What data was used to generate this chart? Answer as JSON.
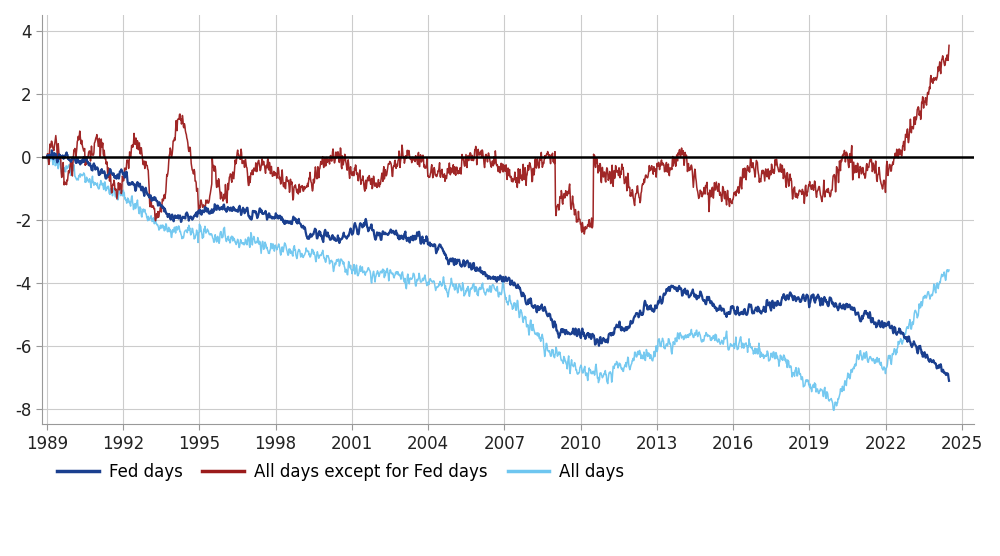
{
  "title": "",
  "ylim": [
    -8.5,
    4.5
  ],
  "yticks": [
    -8,
    -6,
    -4,
    -2,
    0,
    2,
    4
  ],
  "xlim": [
    1988.8,
    2025.5
  ],
  "xtick_years": [
    1989,
    1992,
    1995,
    1998,
    2001,
    2004,
    2007,
    2010,
    2013,
    2016,
    2019,
    2022,
    2025
  ],
  "fed_days_color": "#1a3f8f",
  "non_fed_color": "#9B1B1B",
  "all_days_color": "#6EC6F0",
  "background_color": "#ffffff",
  "grid_color": "#cccccc",
  "legend_labels": [
    "Fed days",
    "All days except for Fed days",
    "All days"
  ],
  "fed_days_lw": 1.6,
  "non_fed_lw": 1.1,
  "all_days_lw": 1.1,
  "zero_line_color": "#000000",
  "zero_line_lw": 1.8
}
